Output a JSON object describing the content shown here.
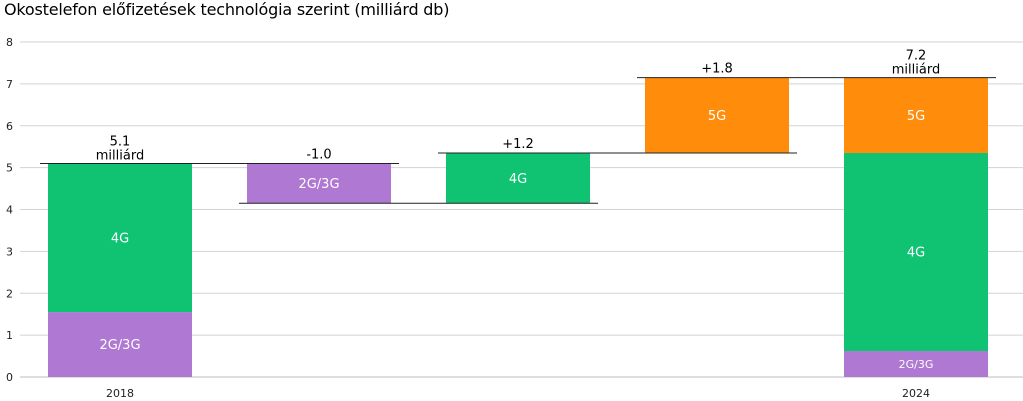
{
  "chart_data": {
    "type": "bar",
    "subtype": "waterfall",
    "title": "Okostelefon előfizetések technológia szerint (milliárd db)",
    "ylim": [
      0,
      8
    ],
    "yticks": [
      "0",
      "1",
      "2",
      "3",
      "4",
      "5",
      "6",
      "7",
      "8"
    ],
    "grid": true,
    "colors": {
      "2G/3G": "#AF78D2",
      "4G": "#0FC373",
      "5G": "#FF8C0A"
    },
    "columns": [
      {
        "xlabel": "2018",
        "segments": [
          {
            "label": "2G/3G",
            "from": 0,
            "to": 1.55
          },
          {
            "label": "4G",
            "from": 1.55,
            "to": 5.1
          }
        ],
        "top_value": "5.1",
        "top_unit": "milliárd"
      },
      {
        "xlabel": "",
        "segments": [
          {
            "label": "2G/3G",
            "from": 4.15,
            "to": 5.1
          }
        ],
        "top_value": "-1.0",
        "top_unit": ""
      },
      {
        "xlabel": "",
        "segments": [
          {
            "label": "4G",
            "from": 4.15,
            "to": 5.35
          }
        ],
        "top_value": "+1.2",
        "top_unit": ""
      },
      {
        "xlabel": "",
        "segments": [
          {
            "label": "5G",
            "from": 5.35,
            "to": 7.15
          }
        ],
        "top_value": "+1.8",
        "top_unit": ""
      },
      {
        "xlabel": "2024",
        "segments": [
          {
            "label": "2G/3G",
            "from": 0,
            "to": 0.62
          },
          {
            "label": "4G",
            "from": 0.62,
            "to": 5.35
          },
          {
            "label": "5G",
            "from": 5.35,
            "to": 7.15
          }
        ],
        "top_value": "7.2",
        "top_unit": "milliárd"
      }
    ],
    "connectors": [
      {
        "from": 0,
        "to": 1,
        "level": 5.1
      },
      {
        "from": 1,
        "to": 2,
        "level": 4.15
      },
      {
        "from": 2,
        "to": 3,
        "level": 5.35
      },
      {
        "from": 3,
        "to": 4,
        "level": 7.15
      }
    ]
  }
}
